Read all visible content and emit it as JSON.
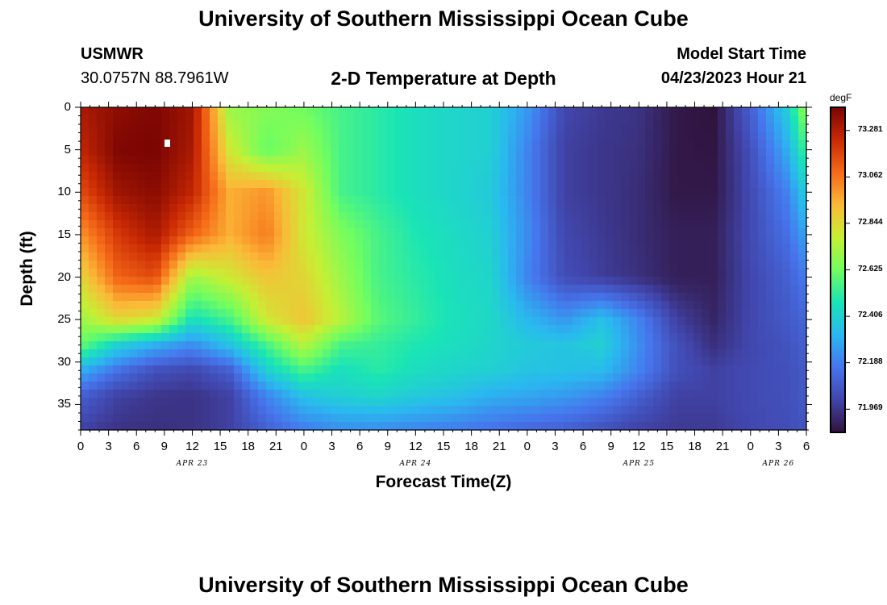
{
  "page": {
    "title_top": "University of Southern Mississippi Ocean Cube",
    "title_bottom": "University of Southern Mississippi Ocean Cube",
    "station": "USMWR",
    "coords": "30.0757N  88.7961W",
    "plot_title": "2-D Temperature at Depth",
    "model_start_label": "Model Start Time",
    "model_start_value": "04/23/2023 Hour 21"
  },
  "chart_data": {
    "type": "heatmap",
    "title": "2-D Temperature at Depth",
    "xlabel": "Forecast Time(Z)",
    "ylabel": "Depth (ft)",
    "xlim": [
      0,
      78
    ],
    "ylim": [
      38,
      0
    ],
    "x_ticks": [
      "0",
      "3",
      "6",
      "9",
      "12",
      "15",
      "18",
      "21",
      "0",
      "3",
      "6",
      "9",
      "12",
      "15",
      "18",
      "21",
      "0",
      "3",
      "6",
      "9",
      "12",
      "15",
      "18",
      "21",
      "0",
      "3",
      "6"
    ],
    "y_ticks": [
      "0",
      "5",
      "10",
      "15",
      "20",
      "25",
      "30",
      "35"
    ],
    "date_labels": [
      {
        "label": "APR 23",
        "hour": 12
      },
      {
        "label": "APR 24",
        "hour": 36
      },
      {
        "label": "APR 25",
        "hour": 60
      },
      {
        "label": "APR 26",
        "hour": 75
      }
    ],
    "colorbar": {
      "unit": "degF",
      "min": 71.86,
      "max": 73.39,
      "ticks": [
        "73.281",
        "73.062",
        "72.844",
        "72.625",
        "72.406",
        "72.188",
        "71.969"
      ]
    },
    "grid_rows_depth_ft": [
      0,
      5,
      10,
      15,
      20,
      25,
      28,
      31,
      34,
      38
    ],
    "grid_cols_hour": [
      0,
      4,
      8,
      12,
      16,
      20,
      24,
      28,
      32,
      36,
      40,
      44,
      48,
      52,
      56,
      60,
      64,
      68,
      72,
      76,
      78
    ],
    "values": [
      [
        73.3,
        73.35,
        73.38,
        73.32,
        72.7,
        72.66,
        72.62,
        72.55,
        72.5,
        72.45,
        72.42,
        72.4,
        72.25,
        72.02,
        71.98,
        71.96,
        71.88,
        71.86,
        72.1,
        72.4,
        72.7
      ],
      [
        73.25,
        73.38,
        73.39,
        73.3,
        72.8,
        72.6,
        72.7,
        72.55,
        72.5,
        72.45,
        72.42,
        72.4,
        72.2,
        72.0,
        71.97,
        71.95,
        71.88,
        71.87,
        72.05,
        72.3,
        72.55
      ],
      [
        73.15,
        73.32,
        73.36,
        73.25,
        72.95,
        73.0,
        72.8,
        72.55,
        72.5,
        72.45,
        72.42,
        72.38,
        72.2,
        72.0,
        71.97,
        71.94,
        71.88,
        71.88,
        72.03,
        72.2,
        72.4
      ],
      [
        73.0,
        73.2,
        73.3,
        73.1,
        72.95,
        73.05,
        72.8,
        72.65,
        72.55,
        72.48,
        72.44,
        72.4,
        72.22,
        72.02,
        71.98,
        71.94,
        71.9,
        71.9,
        72.03,
        72.15,
        72.28
      ],
      [
        72.85,
        73.1,
        73.15,
        72.7,
        72.8,
        72.9,
        72.85,
        72.7,
        72.55,
        72.5,
        72.45,
        72.42,
        72.2,
        72.04,
        71.99,
        71.95,
        71.9,
        71.9,
        72.02,
        72.1,
        72.18
      ],
      [
        72.7,
        72.85,
        72.8,
        72.45,
        72.55,
        72.8,
        72.9,
        72.75,
        72.58,
        72.52,
        72.46,
        72.43,
        72.32,
        72.24,
        72.35,
        72.2,
        72.0,
        71.92,
        72.02,
        72.08,
        72.12
      ],
      [
        72.6,
        72.4,
        72.3,
        72.22,
        72.35,
        72.55,
        72.75,
        72.55,
        72.52,
        72.48,
        72.45,
        72.42,
        72.38,
        72.36,
        72.4,
        72.22,
        72.05,
        71.95,
        72.02,
        72.06,
        72.1
      ],
      [
        72.3,
        72.15,
        72.05,
        72.02,
        72.1,
        72.4,
        72.55,
        72.45,
        72.5,
        72.45,
        72.42,
        72.4,
        72.36,
        72.35,
        72.33,
        72.2,
        72.05,
        72.0,
        72.03,
        72.05,
        72.08
      ],
      [
        72.1,
        72.0,
        71.97,
        71.96,
        72.0,
        72.2,
        72.35,
        72.4,
        72.42,
        72.38,
        72.35,
        72.3,
        72.28,
        72.25,
        72.2,
        72.1,
        72.0,
        72.0,
        72.03,
        72.05,
        72.08
      ],
      [
        72.0,
        71.96,
        71.95,
        71.96,
        72.0,
        72.1,
        72.18,
        72.22,
        72.22,
        72.2,
        72.18,
        72.15,
        72.12,
        72.1,
        72.05,
        72.0,
        71.98,
        71.98,
        72.02,
        72.04,
        72.06
      ]
    ]
  }
}
